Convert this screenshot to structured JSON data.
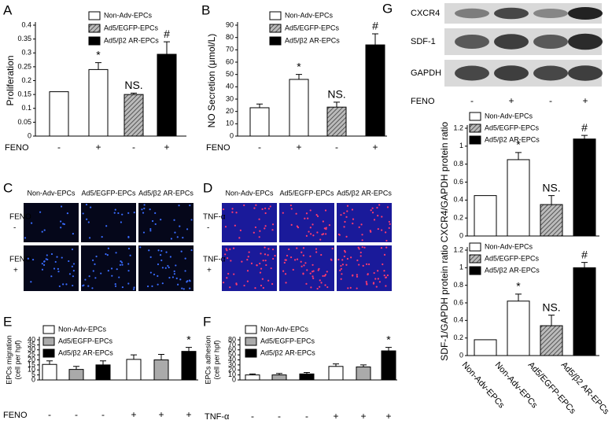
{
  "chart_data": [
    {
      "type": "bar",
      "panel": "A",
      "ylabel": "Proliferation",
      "xlabel": "FENO",
      "categories": [
        "-",
        "+",
        "-",
        "+"
      ],
      "values": [
        0.16,
        0.24,
        0.15,
        0.295
      ],
      "errors": [
        null,
        0.025,
        0.005,
        0.045
      ],
      "colors": [
        "#ffffff",
        "#ffffff",
        "#888888",
        "#000000"
      ],
      "hatched": true,
      "annotations": [
        null,
        "*",
        "NS.",
        "#"
      ],
      "legend": [
        {
          "name": "Non-Adv-EPCs",
          "color": "#ffffff"
        },
        {
          "name": "Ad5/EGFP-EPCs",
          "color": "#888888"
        },
        {
          "name": "Ad5/β2 AR-EPCs",
          "color": "#000000"
        }
      ],
      "ylim": [
        0,
        0.4
      ],
      "yticks": [
        0,
        0.05,
        0.1,
        0.15,
        0.2,
        0.25,
        0.3,
        0.35,
        0.4
      ]
    },
    {
      "type": "bar",
      "panel": "B",
      "ylabel": "NO Secretion (μmol/L)",
      "xlabel": "FENO",
      "categories": [
        "-",
        "+",
        "-",
        "+"
      ],
      "values": [
        23,
        46,
        23.5,
        74
      ],
      "errors": [
        3,
        4,
        4,
        9
      ],
      "colors": [
        "#ffffff",
        "#ffffff",
        "#888888",
        "#000000"
      ],
      "hatched": true,
      "annotations": [
        null,
        "*",
        "NS.",
        "#"
      ],
      "legend": [
        {
          "name": "Non-Adv-EPCs",
          "color": "#ffffff"
        },
        {
          "name": "Ad5/EGFP-EPCs",
          "color": "#888888"
        },
        {
          "name": "Ad5/β2 AR-EPCs",
          "color": "#000000"
        }
      ],
      "ylim": [
        0,
        90
      ],
      "yticks": [
        0,
        10,
        20,
        30,
        40,
        50,
        60,
        70,
        80,
        90
      ]
    },
    {
      "type": "bar",
      "panel": "E",
      "ylabel": [
        "EPCs migration",
        "(cell per hpf)"
      ],
      "xlabel": "FENO",
      "categories": [
        "-",
        "-",
        "-",
        "+",
        "+",
        "+"
      ],
      "values": [
        15.5,
        10.5,
        15,
        20.5,
        20,
        28.5
      ],
      "errors": [
        3.5,
        3,
        4,
        4.5,
        5.5,
        4
      ],
      "colors": [
        "#ffffff",
        "#aaaaaa",
        "#000000",
        "#ffffff",
        "#aaaaaa",
        "#000000"
      ],
      "hatched": false,
      "annotations": [
        null,
        null,
        null,
        null,
        null,
        "*"
      ],
      "legend": [
        {
          "name": "Non-Adv-EPCs",
          "color": "#ffffff"
        },
        {
          "name": "Ad5/EGFP-EPCs",
          "color": "#aaaaaa"
        },
        {
          "name": "Ad5/β2 AR-EPCs",
          "color": "#000000"
        }
      ],
      "ylim": [
        0,
        40
      ],
      "yticks": [
        0,
        5,
        10,
        15,
        20,
        25,
        30,
        35,
        40
      ]
    },
    {
      "type": "bar",
      "panel": "F",
      "ylabel": [
        "EPCs adhesion",
        "(cell per hpf)"
      ],
      "xlabel": "TNF-α",
      "categories": [
        "-",
        "-",
        "-",
        "+",
        "+",
        "+"
      ],
      "values": [
        10,
        10,
        12,
        27,
        26,
        58
      ],
      "errors": [
        2,
        3,
        3,
        5,
        4,
        7
      ],
      "colors": [
        "#ffffff",
        "#aaaaaa",
        "#000000",
        "#ffffff",
        "#aaaaaa",
        "#000000"
      ],
      "hatched": false,
      "annotations": [
        null,
        null,
        null,
        null,
        null,
        "*"
      ],
      "legend": [
        {
          "name": "Non-Adv-EPCs",
          "color": "#ffffff"
        },
        {
          "name": "Ad5/EGFP-EPCs",
          "color": "#aaaaaa"
        },
        {
          "name": "Ad5/β2 AR-EPCs",
          "color": "#000000"
        }
      ],
      "ylim": [
        0,
        80
      ],
      "yticks": [
        0,
        10,
        20,
        30,
        40,
        50,
        60,
        70,
        80
      ]
    },
    {
      "type": "bar",
      "ylabel": "CXCR4/GAPDH protein ratio",
      "values": [
        0.45,
        0.85,
        0.35,
        1.08
      ],
      "errors": [
        null,
        0.08,
        0.1,
        0.04
      ],
      "colors": [
        "#ffffff",
        "#ffffff",
        "#888888",
        "#000000"
      ],
      "hatched": true,
      "annotations": [
        null,
        "*",
        "NS.",
        "#"
      ],
      "legend": [
        {
          "name": "Non-Adv-EPCs",
          "color": "#ffffff"
        },
        {
          "name": "Ad5/EGFP-EPCs",
          "color": "#888888"
        },
        {
          "name": "Ad5/β2 AR-EPCs",
          "color": "#000000"
        }
      ],
      "ylim": [
        0,
        1.2
      ],
      "yticks": [
        0,
        0.2,
        0.4,
        0.6,
        0.8,
        1,
        1.2
      ]
    },
    {
      "type": "bar",
      "ylabel": "SDF-1/GAPDH protein ratio",
      "categories": [
        "Non-Adv-EPCs",
        "Non-Adv-EPCs",
        "Ad5/EGFP-EPCs",
        "Ad5/β2 AR-EPCs"
      ],
      "values": [
        0.18,
        0.62,
        0.34,
        1.0
      ],
      "errors": [
        null,
        0.08,
        0.12,
        0.06
      ],
      "colors": [
        "#ffffff",
        "#ffffff",
        "#888888",
        "#000000"
      ],
      "hatched": true,
      "annotations": [
        null,
        "*",
        "NS.",
        "#"
      ],
      "legend": [
        {
          "name": "Non-Adv-EPCs",
          "color": "#ffffff"
        },
        {
          "name": "Ad5/EGFP-EPCs",
          "color": "#888888"
        },
        {
          "name": "Ad5/β2 AR-EPCs",
          "color": "#000000"
        }
      ],
      "ylim": [
        0,
        1.2
      ],
      "yticks": [
        0,
        0.2,
        0.4,
        0.6,
        0.8,
        1,
        1.2
      ]
    }
  ],
  "image_panels": [
    {
      "panel": "C",
      "columns": [
        "Non-Adv-EPCs",
        "Ad5/EGFP-EPCs",
        "Ad5/β2 AR-EPCs"
      ],
      "row_labels": [
        [
          "FENO",
          "-"
        ],
        [
          "FENO",
          "+"
        ]
      ]
    },
    {
      "panel": "D",
      "columns": [
        "Non-Adv-EPCs",
        "Ad5/EGFP-EPCs",
        "Ad5/β2 AR-EPCs"
      ],
      "row_labels": [
        [
          "TNF-α",
          "-"
        ],
        [
          "TNF-α",
          "+"
        ]
      ]
    }
  ],
  "blot": {
    "panel": "G",
    "bands": [
      "CXCR4",
      "SDF-1",
      "GAPDH"
    ],
    "xlabel": "FENO",
    "conditions": [
      "-",
      "+",
      "-",
      "+"
    ]
  }
}
